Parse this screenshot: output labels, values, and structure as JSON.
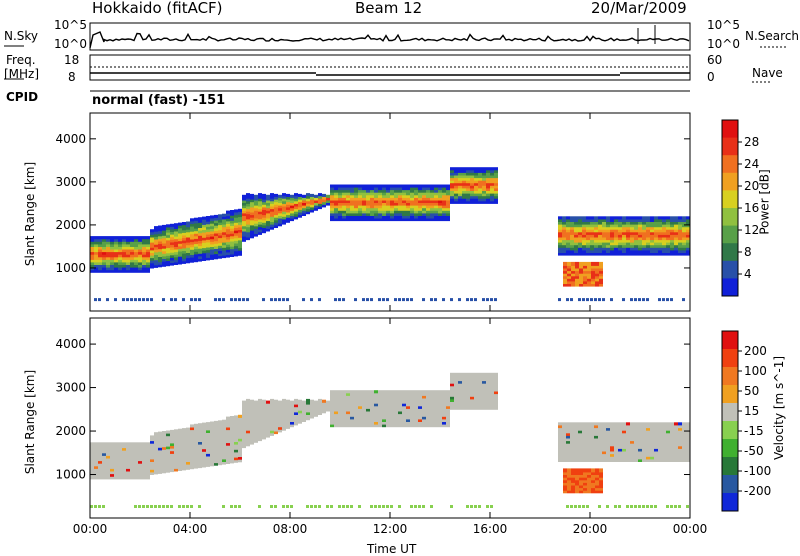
{
  "header": {
    "title": "Hokkaido (fitACF)",
    "beam": "Beam 12",
    "date": "20/Mar/2009"
  },
  "noise_panel": {
    "left_label": "N.Sky",
    "right_label": "N.Search",
    "left_ticks": [
      "10^5",
      "10^0"
    ],
    "right_ticks": [
      "10^5",
      "10^0"
    ]
  },
  "freq_panel": {
    "left_label_1": "Freq.",
    "left_label_2": "[MHz]",
    "left_ticks": [
      "18",
      "8"
    ],
    "right_label": "Nave",
    "right_ticks": [
      "60",
      "0"
    ],
    "cpid_label": "CPID",
    "mode": "normal (fast) -151"
  },
  "colors": {
    "power": [
      "#1020d8",
      "#2850a8",
      "#307848",
      "#58a048",
      "#90c040",
      "#d8d020",
      "#f0a020",
      "#f07020",
      "#e83018",
      "#e01010"
    ],
    "velocity": [
      "#1028d8",
      "#2858a0",
      "#287838",
      "#40b030",
      "#88d050",
      "#c0c0b8",
      "#f0a020",
      "#f07820",
      "#f04010",
      "#e01010"
    ]
  },
  "chart_data": [
    {
      "type": "heatmap",
      "title": "",
      "xlabel": "",
      "ylabel": "Slant Range [km]",
      "xlim": [
        "00:00",
        "00:00"
      ],
      "ylim": [
        0,
        4600
      ],
      "y_ticks": [
        "1000",
        "2000",
        "3000",
        "4000"
      ],
      "colorbar": {
        "label": "Power [dB]",
        "ticks": [
          "28",
          "24",
          "20",
          "16",
          "12",
          "8",
          "4"
        ]
      }
    },
    {
      "type": "heatmap",
      "title": "",
      "xlabel": "Time UT",
      "ylabel": "Slant Range [km]",
      "x_ticks": [
        "00:00",
        "04:00",
        "08:00",
        "12:00",
        "16:00",
        "20:00",
        "00:00"
      ],
      "ylim": [
        0,
        4600
      ],
      "y_ticks": [
        "1000",
        "2000",
        "3000",
        "4000"
      ],
      "colorbar": {
        "label": "Velocity [m s^-1]",
        "ticks": [
          "200",
          "100",
          "50",
          "15",
          "-15",
          "-50",
          "-100",
          "-200"
        ]
      }
    }
  ]
}
